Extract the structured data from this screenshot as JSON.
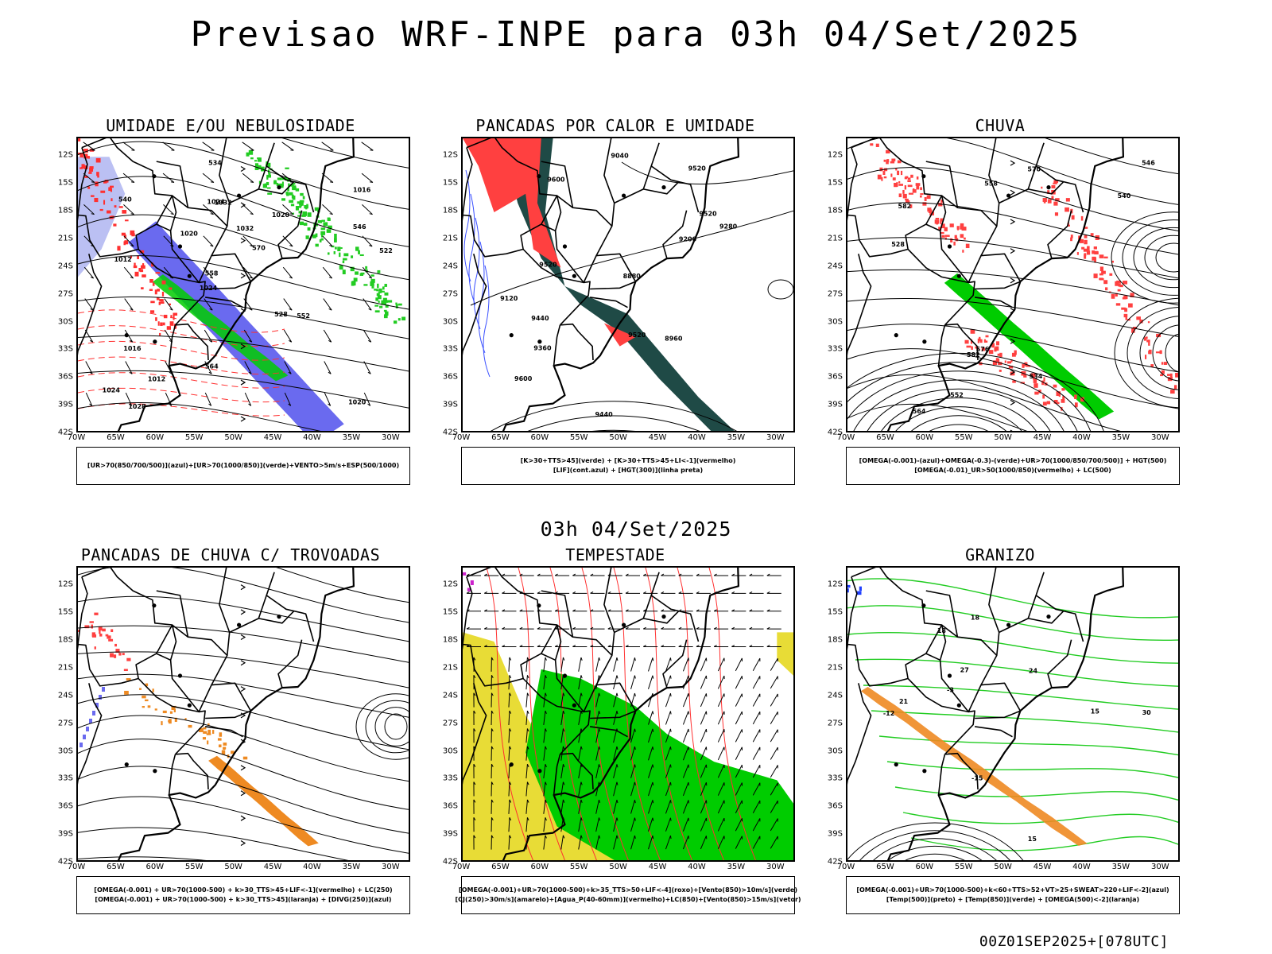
{
  "header": {
    "title": "Previsao WRF-INPE  para 03h 04/Set/2025"
  },
  "row_subtitle": "03h 04/Set/2025",
  "footer": "00Z01SEP2025+[078UTC]",
  "axes": {
    "lat_labels": [
      "12S",
      "15S",
      "18S",
      "21S",
      "24S",
      "27S",
      "30S",
      "33S",
      "36S",
      "39S",
      "42S"
    ],
    "lon_labels": [
      "70W",
      "65W",
      "60W",
      "55W",
      "50W",
      "45W",
      "40W",
      "35W",
      "30W"
    ]
  },
  "colors": {
    "blue_fill": "#6a6aef",
    "green_fill": "#00cc00",
    "red_fill": "#ff4040",
    "dark_teal_fill": "#1f4a46",
    "orange_fill": "#ee8a22",
    "yellow_fill": "#e8dc36",
    "contour_black": "#000000",
    "contour_red": "#ff3030",
    "contour_green": "#22cc22"
  },
  "panels": [
    {
      "title": "UMIDADE E/OU NEBULOSIDADE",
      "legend": [
        "[UR>70(850/700/500)](azul)+[UR>70(1000/850)](verde)+VENTO>5m/s+ESP(500/1000)"
      ],
      "contour_labels": [
        "1020",
        "1012",
        "1016",
        "1024",
        "1020",
        "1028",
        "1024",
        "1032",
        "1016",
        "1020",
        "1024",
        "1012",
        "1032",
        "570",
        "552",
        "540",
        "534",
        "522",
        "528",
        "546",
        "558",
        "564"
      ],
      "icon": "streamline-map-icon"
    },
    {
      "title": "PANCADAS POR CALOR E UMIDADE",
      "legend": [
        "[K>30+TTS>45](verde) + [K>30+TTS>45+LI<-1](vermelho)",
        "[LIF](cont.azul) + [HGT(300)](linha preta)"
      ],
      "contour_labels": [
        "9600",
        "9520",
        "9600",
        "9520",
        "9520",
        "9520",
        "9440",
        "9360",
        "9280",
        "9200",
        "9120",
        "9040",
        "8960",
        "8880",
        "9440"
      ],
      "icon": "contour-map-icon"
    },
    {
      "title": "CHUVA",
      "legend": [
        "[OMEGA(-0.001)-(azul)+OMEGA(-0.3)-(verde)+UR>70(1000/850/700/500)] + HGT(500)",
        "[OMEGA(-0.01)_UR>50(1000/850)(vermelho) + LC(500)"
      ],
      "contour_labels": [
        "582",
        "576",
        "570",
        "564",
        "558",
        "552",
        "546",
        "540",
        "534",
        "528",
        "582"
      ],
      "icon": "streamline-map-icon"
    },
    {
      "title": "PANCADAS DE CHUVA C/ TROVOADAS",
      "legend": [
        "[OMEGA(-0.001) + UR>70(1000-500) + k>30_TTS>45+LIF<-1](vermelho) + LC(250)",
        "[OMEGA(-0.001) + UR>70(1000-500) + k>30_TTS>45](laranja) + [DIVG(250)](azul)"
      ],
      "contour_labels": [],
      "icon": "streamline-map-icon"
    },
    {
      "title": "TEMPESTADE",
      "legend": [
        "[OMEGA(-0.001)+UR>70(1000-500)+k>35_TTS>50+LIF<-4](roxo)+[Vento(850)>10m/s](verde)",
        "[CJ(250)>30m/s](amarelo)+[Agua_P(40-60mm)](vermelho)+LC(850)+[Vento(850)>15m/s](vetor)"
      ],
      "contour_labels": [],
      "icon": "wind-vector-map-icon"
    },
    {
      "title": "GRANIZO",
      "legend": [
        "[OMEGA(-0.001)+UR>70(1000-500)+k<60+TTS>52+VT>25+SWEAT>220+LIF<-2](azul)",
        "[Temp(500)](preto) + [Temp(850)](verde) + [OMEGA(500)<-2](laranja)"
      ],
      "contour_labels": [
        "-12",
        "-15",
        "15",
        "18",
        "21",
        "24",
        "27",
        "30",
        "15",
        "-3",
        "18"
      ],
      "icon": "contour-map-icon"
    }
  ]
}
